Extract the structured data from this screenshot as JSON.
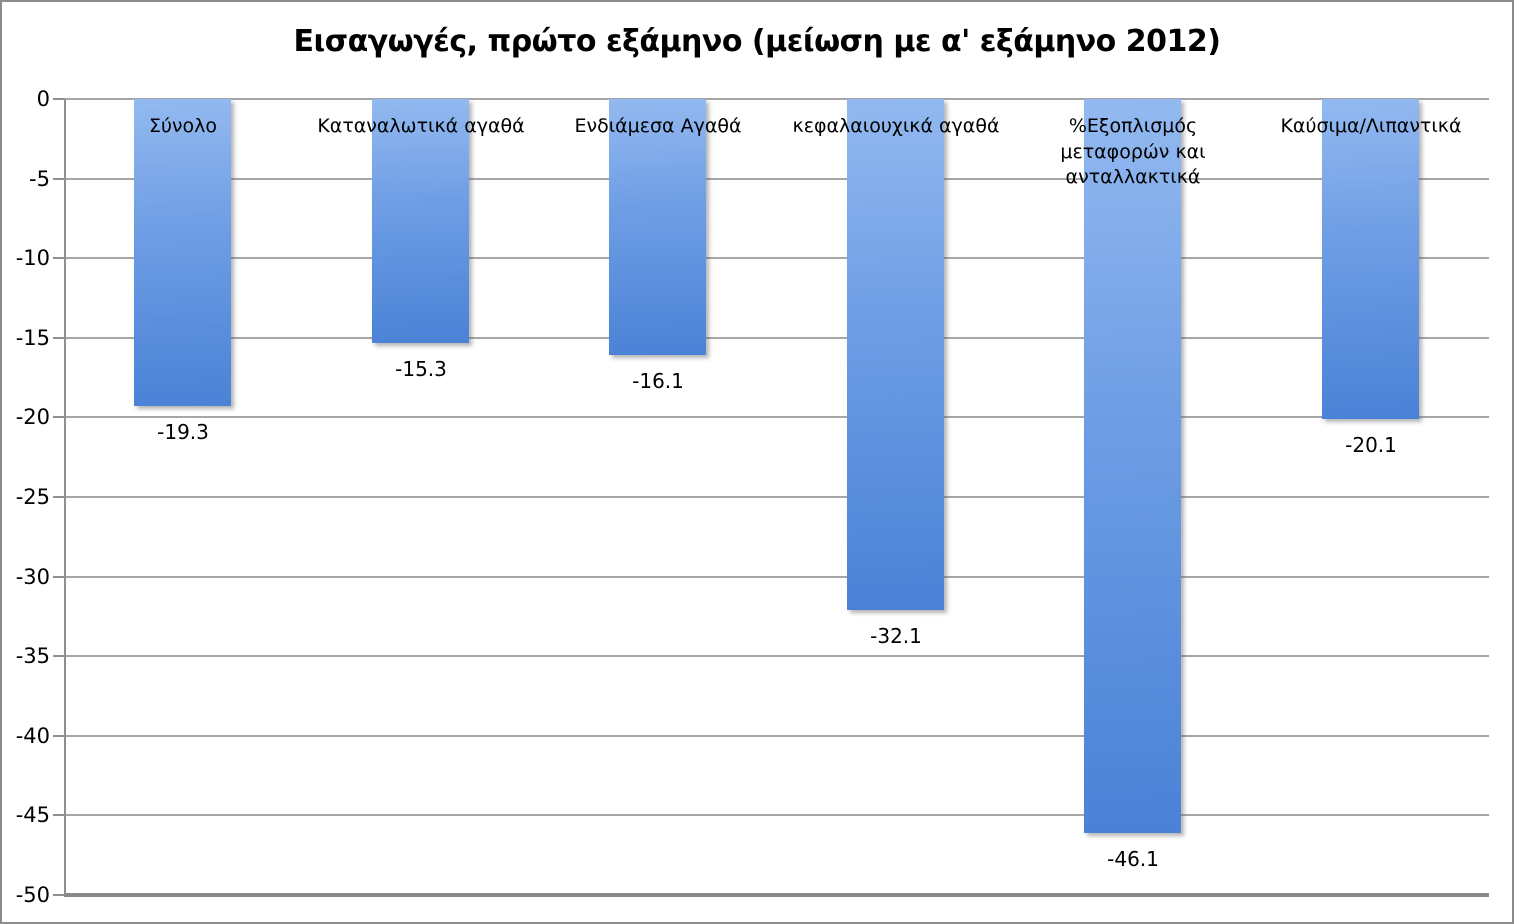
{
  "title": "Εισαγωγές, πρώτο εξάμηνο (μείωση με α' εξάμηνο 2012)",
  "chart_data": {
    "type": "bar",
    "title": "Εισαγωγές, πρώτο εξάμηνο (μείωση με α' εξάμηνο 2012)",
    "categories": [
      "Σύνολο",
      "Καταναλωτικά αγαθά",
      "Ενδιάμεσα Αγαθά",
      "κεφαλαιουχικά αγαθά",
      "%Εξοπλισμός μεταφορών και ανταλλακτικά",
      "Καύσιμα/Λιπαντικά"
    ],
    "values": [
      -19.3,
      -15.3,
      -16.1,
      -32.1,
      -46.1,
      -20.1
    ],
    "data_labels": [
      "-19.3",
      "-15.3",
      "-16.1",
      "-32.1",
      "-46.1",
      "-20.1"
    ],
    "xlabel": "",
    "ylabel": "",
    "ylim": [
      -50,
      0
    ],
    "yticks": [
      0,
      -5,
      -10,
      -15,
      -20,
      -25,
      -30,
      -35,
      -40,
      -45,
      -50
    ],
    "grid": true,
    "legend": false,
    "bar_color_top": "#93b9f0",
    "bar_color_bottom": "#4a82d6",
    "gridline_color": "#a6a6a6",
    "axis_color": "#8f8f8f"
  }
}
